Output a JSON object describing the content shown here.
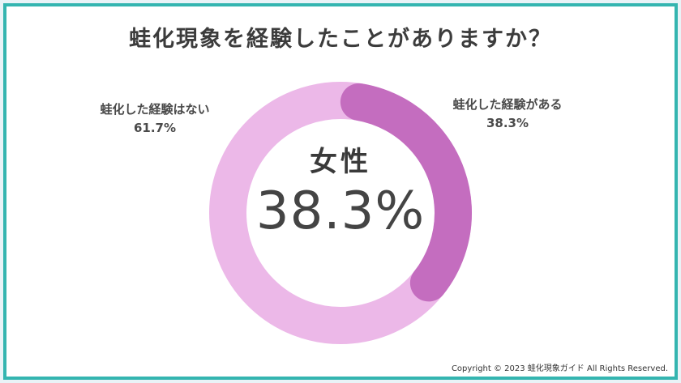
{
  "title": "蛙化現象を経験したことがありますか？",
  "center": {
    "heading": "女性",
    "value": "38.3%"
  },
  "labels": {
    "no_name": "蛙化した経験はない",
    "no_value": "61.7%",
    "yes_name": "蛙化した経験がある",
    "yes_value": "38.3%"
  },
  "copyright": "Copyright © 2023 蛙化現象ガイド All Rights Reserved.",
  "colors": {
    "frame": "#34b5b0",
    "yes": "#c46dbf",
    "no": "#ecb8e8",
    "background": "#e9f3f7"
  },
  "chart_data": {
    "type": "pie",
    "categories": [
      "蛙化した経験がある",
      "蛙化した経験はない"
    ],
    "values": [
      38.3,
      61.7
    ],
    "title": "蛙化現象を経験したことがありますか？"
  }
}
